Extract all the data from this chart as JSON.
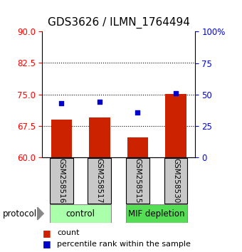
{
  "title": "GDS3626 / ILMN_1764494",
  "categories": [
    "GSM258516",
    "GSM258517",
    "GSM258515",
    "GSM258530"
  ],
  "bar_values": [
    69.0,
    69.5,
    64.8,
    75.2
  ],
  "percentile_values": [
    43,
    44,
    36,
    51
  ],
  "bar_color": "#cc2200",
  "dot_color": "#0000cc",
  "left_ylim": [
    60,
    90
  ],
  "left_yticks": [
    60,
    67.5,
    75,
    82.5,
    90
  ],
  "right_ylim": [
    0,
    100
  ],
  "right_yticks": [
    0,
    25,
    50,
    75,
    100
  ],
  "right_yticklabels": [
    "0",
    "25",
    "50",
    "75",
    "100%"
  ],
  "groups": [
    {
      "label": "control",
      "indices": [
        0,
        1
      ],
      "color": "#aaffaa"
    },
    {
      "label": "MIF depletion",
      "indices": [
        2,
        3
      ],
      "color": "#55dd55"
    }
  ],
  "protocol_label": "protocol",
  "legend_items": [
    {
      "label": "count",
      "color": "#cc2200"
    },
    {
      "label": "percentile rank within the sample",
      "color": "#0000cc"
    }
  ],
  "bar_width": 0.55,
  "title_fontsize": 11,
  "tick_fontsize": 8.5,
  "label_fontsize": 8
}
